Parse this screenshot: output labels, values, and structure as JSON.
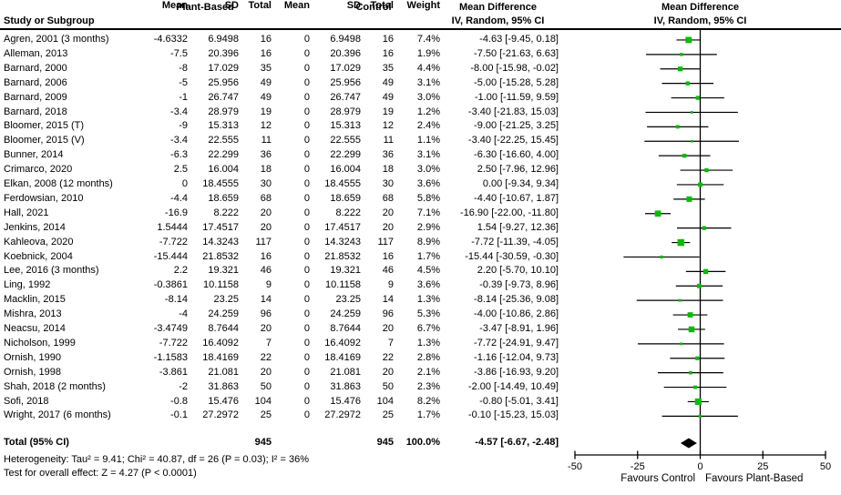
{
  "header": {
    "study_col": "Study or Subgroup",
    "group_plant": "Plant-Based",
    "group_control": "Control",
    "sub_mean": "Mean",
    "sub_sd": "SD",
    "sub_total": "Total",
    "weight": "Weight",
    "md_group": "Mean Difference",
    "md_sub": "IV, Random, 95% CI"
  },
  "chart_data": {
    "type": "scatter",
    "subtype": "forest-plot",
    "effect_measure": "Mean Difference IV, Random, 95% CI",
    "xlim": [
      -50,
      50
    ],
    "x_ticks": [
      "-50",
      "-25",
      "0",
      "25",
      "50"
    ],
    "x_tick_values": [
      -50,
      -25,
      0,
      25,
      50
    ],
    "favours_left": "Favours Control",
    "favours_right": "Favours Plant-Based",
    "colors": {
      "marker": "#00be00",
      "ci_line": "#000000",
      "diamond": "#000000"
    },
    "studies": [
      {
        "label": "Agren, 2001 (3 months)",
        "pb_mean": "-4.6332",
        "pb_sd": "6.9498",
        "pb_total": "16",
        "c_mean": "0",
        "c_sd": "6.9498",
        "c_total": "16",
        "weight": "7.4%",
        "md_label": "-4.63 [-9.45, 0.18]",
        "md": -4.63,
        "lo": -9.45,
        "hi": 0.18,
        "w": 7.4
      },
      {
        "label": "Alleman, 2013",
        "pb_mean": "-7.5",
        "pb_sd": "20.396",
        "pb_total": "16",
        "c_mean": "0",
        "c_sd": "20.396",
        "c_total": "16",
        "weight": "1.9%",
        "md_label": "-7.50 [-21.63, 6.63]",
        "md": -7.5,
        "lo": -21.63,
        "hi": 6.63,
        "w": 1.9
      },
      {
        "label": "Barnard, 2000",
        "pb_mean": "-8",
        "pb_sd": "17.029",
        "pb_total": "35",
        "c_mean": "0",
        "c_sd": "17.029",
        "c_total": "35",
        "weight": "4.4%",
        "md_label": "-8.00 [-15.98, -0.02]",
        "md": -8,
        "lo": -15.98,
        "hi": -0.02,
        "w": 4.4
      },
      {
        "label": "Barnard, 2006",
        "pb_mean": "-5",
        "pb_sd": "25.956",
        "pb_total": "49",
        "c_mean": "0",
        "c_sd": "25.956",
        "c_total": "49",
        "weight": "3.1%",
        "md_label": "-5.00 [-15.28, 5.28]",
        "md": -5,
        "lo": -15.28,
        "hi": 5.28,
        "w": 3.1
      },
      {
        "label": "Barnard, 2009",
        "pb_mean": "-1",
        "pb_sd": "26.747",
        "pb_total": "49",
        "c_mean": "0",
        "c_sd": "26.747",
        "c_total": "49",
        "weight": "3.0%",
        "md_label": "-1.00 [-11.59, 9.59]",
        "md": -1,
        "lo": -11.59,
        "hi": 9.59,
        "w": 3.0
      },
      {
        "label": "Barnard, 2018",
        "pb_mean": "-3.4",
        "pb_sd": "28.979",
        "pb_total": "19",
        "c_mean": "0",
        "c_sd": "28.979",
        "c_total": "19",
        "weight": "1.2%",
        "md_label": "-3.40 [-21.83, 15.03]",
        "md": -3.4,
        "lo": -21.83,
        "hi": 15.03,
        "w": 1.2
      },
      {
        "label": "Bloomer, 2015 (T)",
        "pb_mean": "-9",
        "pb_sd": "15.313",
        "pb_total": "12",
        "c_mean": "0",
        "c_sd": "15.313",
        "c_total": "12",
        "weight": "2.4%",
        "md_label": "-9.00 [-21.25, 3.25]",
        "md": -9,
        "lo": -21.25,
        "hi": 3.25,
        "w": 2.4
      },
      {
        "label": "Bloomer, 2015 (V)",
        "pb_mean": "-3.4",
        "pb_sd": "22.555",
        "pb_total": "11",
        "c_mean": "0",
        "c_sd": "22.555",
        "c_total": "11",
        "weight": "1.1%",
        "md_label": "-3.40 [-22.25, 15.45]",
        "md": -3.4,
        "lo": -22.25,
        "hi": 15.45,
        "w": 1.1
      },
      {
        "label": "Bunner, 2014",
        "pb_mean": "-6.3",
        "pb_sd": "22.299",
        "pb_total": "36",
        "c_mean": "0",
        "c_sd": "22.299",
        "c_total": "36",
        "weight": "3.1%",
        "md_label": "-6.30 [-16.60, 4.00]",
        "md": -6.3,
        "lo": -16.6,
        "hi": 4.0,
        "w": 3.1
      },
      {
        "label": "Crimarco, 2020",
        "pb_mean": "2.5",
        "pb_sd": "16.004",
        "pb_total": "18",
        "c_mean": "0",
        "c_sd": "16.004",
        "c_total": "18",
        "weight": "3.0%",
        "md_label": "2.50 [-7.96, 12.96]",
        "md": 2.5,
        "lo": -7.96,
        "hi": 12.96,
        "w": 3.0
      },
      {
        "label": "Elkan, 2008 (12 months)",
        "pb_mean": "0",
        "pb_sd": "18.4555",
        "pb_total": "30",
        "c_mean": "0",
        "c_sd": "18.4555",
        "c_total": "30",
        "weight": "3.6%",
        "md_label": "0.00 [-9.34, 9.34]",
        "md": 0,
        "lo": -9.34,
        "hi": 9.34,
        "w": 3.6
      },
      {
        "label": "Ferdowsian, 2010",
        "pb_mean": "-4.4",
        "pb_sd": "18.659",
        "pb_total": "68",
        "c_mean": "0",
        "c_sd": "18.659",
        "c_total": "68",
        "weight": "5.8%",
        "md_label": "-4.40 [-10.67, 1.87]",
        "md": -4.4,
        "lo": -10.67,
        "hi": 1.87,
        "w": 5.8
      },
      {
        "label": "Hall, 2021",
        "pb_mean": "-16.9",
        "pb_sd": "8.222",
        "pb_total": "20",
        "c_mean": "0",
        "c_sd": "8.222",
        "c_total": "20",
        "weight": "7.1%",
        "md_label": "-16.90 [-22.00, -11.80]",
        "md": -16.9,
        "lo": -22.0,
        "hi": -11.8,
        "w": 7.1
      },
      {
        "label": "Jenkins, 2014",
        "pb_mean": "1.5444",
        "pb_sd": "17.4517",
        "pb_total": "20",
        "c_mean": "0",
        "c_sd": "17.4517",
        "c_total": "20",
        "weight": "2.9%",
        "md_label": "1.54 [-9.27, 12.36]",
        "md": 1.54,
        "lo": -9.27,
        "hi": 12.36,
        "w": 2.9
      },
      {
        "label": "Kahleova, 2020",
        "pb_mean": "-7.722",
        "pb_sd": "14.3243",
        "pb_total": "117",
        "c_mean": "0",
        "c_sd": "14.3243",
        "c_total": "117",
        "weight": "8.9%",
        "md_label": "-7.72 [-11.39, -4.05]",
        "md": -7.72,
        "lo": -11.39,
        "hi": -4.05,
        "w": 8.9
      },
      {
        "label": "Koebnick, 2004",
        "pb_mean": "-15.444",
        "pb_sd": "21.8532",
        "pb_total": "16",
        "c_mean": "0",
        "c_sd": "21.8532",
        "c_total": "16",
        "weight": "1.7%",
        "md_label": "-15.44 [-30.59, -0.30]",
        "md": -15.44,
        "lo": -30.59,
        "hi": -0.3,
        "w": 1.7
      },
      {
        "label": "Lee, 2016 (3 months)",
        "pb_mean": "2.2",
        "pb_sd": "19.321",
        "pb_total": "46",
        "c_mean": "0",
        "c_sd": "19.321",
        "c_total": "46",
        "weight": "4.5%",
        "md_label": "2.20 [-5.70, 10.10]",
        "md": 2.2,
        "lo": -5.7,
        "hi": 10.1,
        "w": 4.5
      },
      {
        "label": "Ling, 1992",
        "pb_mean": "-0.3861",
        "pb_sd": "10.1158",
        "pb_total": "9",
        "c_mean": "0",
        "c_sd": "10.1158",
        "c_total": "9",
        "weight": "3.6%",
        "md_label": "-0.39 [-9.73, 8.96]",
        "md": -0.39,
        "lo": -9.73,
        "hi": 8.96,
        "w": 3.6
      },
      {
        "label": "Macklin, 2015",
        "pb_mean": "-8.14",
        "pb_sd": "23.25",
        "pb_total": "14",
        "c_mean": "0",
        "c_sd": "23.25",
        "c_total": "14",
        "weight": "1.3%",
        "md_label": "-8.14 [-25.36, 9.08]",
        "md": -8.14,
        "lo": -25.36,
        "hi": 9.08,
        "w": 1.3
      },
      {
        "label": "Mishra, 2013",
        "pb_mean": "-4",
        "pb_sd": "24.259",
        "pb_total": "96",
        "c_mean": "0",
        "c_sd": "24.259",
        "c_total": "96",
        "weight": "5.3%",
        "md_label": "-4.00 [-10.86, 2.86]",
        "md": -4,
        "lo": -10.86,
        "hi": 2.86,
        "w": 5.3
      },
      {
        "label": "Neacsu, 2014",
        "pb_mean": "-3.4749",
        "pb_sd": "8.7644",
        "pb_total": "20",
        "c_mean": "0",
        "c_sd": "8.7644",
        "c_total": "20",
        "weight": "6.7%",
        "md_label": "-3.47 [-8.91, 1.96]",
        "md": -3.47,
        "lo": -8.91,
        "hi": 1.96,
        "w": 6.7
      },
      {
        "label": "Nicholson, 1999",
        "pb_mean": "-7.722",
        "pb_sd": "16.4092",
        "pb_total": "7",
        "c_mean": "0",
        "c_sd": "16.4092",
        "c_total": "7",
        "weight": "1.3%",
        "md_label": "-7.72 [-24.91, 9.47]",
        "md": -7.72,
        "lo": -24.91,
        "hi": 9.47,
        "w": 1.3
      },
      {
        "label": "Ornish, 1990",
        "pb_mean": "-1.1583",
        "pb_sd": "18.4169",
        "pb_total": "22",
        "c_mean": "0",
        "c_sd": "18.4169",
        "c_total": "22",
        "weight": "2.8%",
        "md_label": "-1.16 [-12.04, 9.73]",
        "md": -1.16,
        "lo": -12.04,
        "hi": 9.73,
        "w": 2.8
      },
      {
        "label": "Ornish, 1998",
        "pb_mean": "-3.861",
        "pb_sd": "21.081",
        "pb_total": "20",
        "c_mean": "0",
        "c_sd": "21.081",
        "c_total": "20",
        "weight": "2.1%",
        "md_label": "-3.86 [-16.93, 9.20]",
        "md": -3.86,
        "lo": -16.93,
        "hi": 9.2,
        "w": 2.1
      },
      {
        "label": "Shah, 2018 (2 months)",
        "pb_mean": "-2",
        "pb_sd": "31.863",
        "pb_total": "50",
        "c_mean": "0",
        "c_sd": "31.863",
        "c_total": "50",
        "weight": "2.3%",
        "md_label": "-2.00 [-14.49, 10.49]",
        "md": -2,
        "lo": -14.49,
        "hi": 10.49,
        "w": 2.3
      },
      {
        "label": "Sofi, 2018",
        "pb_mean": "-0.8",
        "pb_sd": "15.476",
        "pb_total": "104",
        "c_mean": "0",
        "c_sd": "15.476",
        "c_total": "104",
        "weight": "8.2%",
        "md_label": "-0.80 [-5.01, 3.41]",
        "md": -0.8,
        "lo": -5.01,
        "hi": 3.41,
        "w": 8.2
      },
      {
        "label": "Wright, 2017 (6 months)",
        "pb_mean": "-0.1",
        "pb_sd": "27.2972",
        "pb_total": "25",
        "c_mean": "0",
        "c_sd": "27.2972",
        "c_total": "25",
        "weight": "1.7%",
        "md_label": "-0.10 [-15.23, 15.03]",
        "md": -0.1,
        "lo": -15.23,
        "hi": 15.03,
        "w": 1.7
      }
    ],
    "total": {
      "label": "Total (95% CI)",
      "pb_total": "945",
      "c_total": "945",
      "weight": "100.0%",
      "md_label": "-4.57 [-6.67, -2.48]",
      "md": -4.57,
      "lo": -6.67,
      "hi": -2.48
    }
  },
  "footer": {
    "heterogeneity": "Heterogeneity: Tau² = 9.41; Chi² = 40.87, df = 26 (P = 0.03); I² = 36%",
    "overall_effect": "Test for overall effect: Z = 4.27 (P < 0.0001)"
  }
}
